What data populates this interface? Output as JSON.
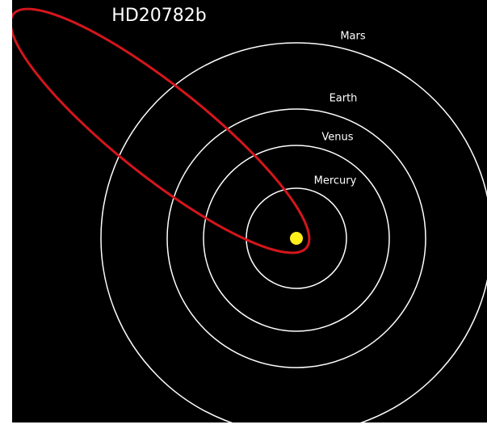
{
  "title": "HD20782b",
  "planets": [
    {
      "label": "Mars"
    },
    {
      "label": "Earth"
    },
    {
      "label": "Venus"
    },
    {
      "label": "Mercury"
    }
  ]
}
